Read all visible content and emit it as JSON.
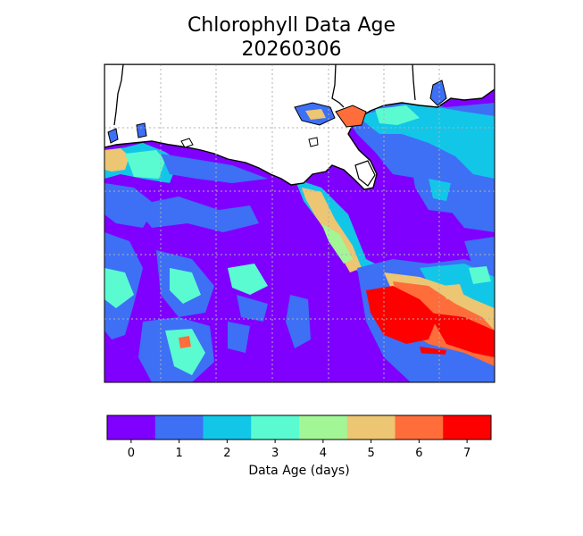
{
  "title": {
    "line1": "Chlorophyll Data Age",
    "line2": "20260306"
  },
  "colorbar": {
    "label": "Data Age (days)",
    "ticks": [
      "0",
      "1",
      "2",
      "3",
      "4",
      "5",
      "6",
      "7"
    ],
    "colors": [
      "#7f00ff",
      "#3d70f5",
      "#12c6e8",
      "#5afbd0",
      "#a2f696",
      "#ecc673",
      "#ff6d3b",
      "#ff0000"
    ]
  },
  "map": {
    "land_color": "#ffffff",
    "water_base_color": "#7f00ff",
    "gridlines": "dotted",
    "coastline_color": "#000000"
  }
}
